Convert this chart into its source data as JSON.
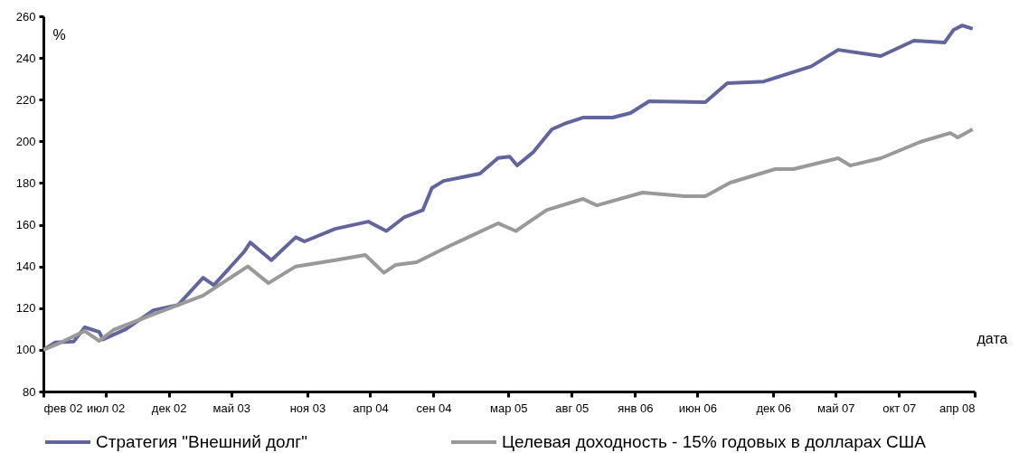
{
  "chart_data": {
    "type": "line",
    "xlabel": "дата",
    "ylabel": "%",
    "xlim": [
      "2002-02-01",
      "2008-04-01"
    ],
    "ylim": [
      80,
      260
    ],
    "yticks": [
      80,
      100,
      120,
      140,
      160,
      180,
      200,
      220,
      240,
      260
    ],
    "xticks": [
      {
        "value": "2002-02-01",
        "label": "фев 02"
      },
      {
        "value": "2002-07-01",
        "label": "июл 02"
      },
      {
        "value": "2002-12-01",
        "label": "дек 02"
      },
      {
        "value": "2003-05-01",
        "label": "май 03"
      },
      {
        "value": "2003-11-01",
        "label": "ноя 03"
      },
      {
        "value": "2004-04-01",
        "label": "апр 04"
      },
      {
        "value": "2004-09-01",
        "label": "сен 04"
      },
      {
        "value": "2005-03-01",
        "label": "мар 05"
      },
      {
        "value": "2005-08-01",
        "label": "авг 05"
      },
      {
        "value": "2006-01-01",
        "label": "янв 06"
      },
      {
        "value": "2006-06-01",
        "label": "июн 06"
      },
      {
        "value": "2006-12-01",
        "label": "дек 06"
      },
      {
        "value": "2007-05-01",
        "label": "май 07"
      },
      {
        "value": "2007-10-01",
        "label": "окт 07"
      },
      {
        "value": "2008-04-01",
        "label": "апр 08"
      }
    ],
    "grid": false,
    "legend": "bottom",
    "marker": "none",
    "line_style": "solid",
    "series": [
      {
        "name": "Стратегия \"Внешний долг\"",
        "color": "#62659c",
        "x": [
          "2002-02-01",
          "2002-03-01",
          "2002-04-15",
          "2002-05-12",
          "2002-06-16",
          "2002-06-25",
          "2002-08-20",
          "2002-10-25",
          "2002-12-24",
          "2003-02-22",
          "2003-03-20",
          "2003-06-01",
          "2003-06-16",
          "2003-08-06",
          "2003-10-04",
          "2003-10-25",
          "2004-01-07",
          "2004-03-27",
          "2004-05-10",
          "2004-06-23",
          "2004-08-06",
          "2004-08-28",
          "2004-09-25",
          "2004-12-22",
          "2005-02-04",
          "2005-03-04",
          "2005-03-22",
          "2005-05-01",
          "2005-06-14",
          "2005-07-14",
          "2005-08-28",
          "2005-11-08",
          "2005-12-21",
          "2006-02-04",
          "2006-06-20",
          "2006-08-12",
          "2006-11-08",
          "2007-03-03",
          "2007-05-07",
          "2007-08-18",
          "2007-11-06",
          "2008-01-19",
          "2008-02-10",
          "2008-03-02",
          "2008-03-27"
        ],
        "values": [
          100,
          103.5,
          104,
          110.8,
          108.6,
          105,
          110,
          119,
          121.6,
          134.6,
          131,
          147,
          151.5,
          143,
          154,
          152,
          158,
          161.5,
          157,
          163.7,
          167,
          177.6,
          181,
          184.5,
          192,
          192.7,
          188.4,
          195,
          205.8,
          208.4,
          211.4,
          211.4,
          213.6,
          219.2,
          218.8,
          227.9,
          228.7,
          236,
          243.9,
          240.9,
          248.3,
          247.4,
          253.5,
          255.6,
          254
        ]
      },
      {
        "name": "Целевая доходность - 15% годовых в долларах США",
        "color": "#999999",
        "x": [
          "2002-02-01",
          "2002-03-15",
          "2002-05-12",
          "2002-06-16",
          "2002-07-20",
          "2002-10-25",
          "2003-02-22",
          "2003-06-10",
          "2003-07-30",
          "2003-10-04",
          "2004-01-07",
          "2004-03-20",
          "2004-05-04",
          "2004-06-01",
          "2004-07-22",
          "2004-10-05",
          "2005-02-04",
          "2005-03-19",
          "2005-06-01",
          "2005-08-28",
          "2005-10-01",
          "2006-01-19",
          "2006-05-01",
          "2006-06-20",
          "2006-08-19",
          "2006-12-06",
          "2007-01-19",
          "2007-05-07",
          "2007-06-05",
          "2007-08-18",
          "2007-11-21",
          "2008-02-02",
          "2008-02-20",
          "2008-03-27"
        ],
        "values": [
          100,
          103.5,
          109,
          104.3,
          109.5,
          117,
          126,
          140,
          132,
          140,
          143,
          145.5,
          137,
          140.7,
          142,
          149.4,
          160.7,
          157,
          167,
          172.4,
          169.3,
          175.4,
          173.7,
          173.7,
          180.2,
          186.7,
          186.7,
          191.9,
          188.4,
          191.9,
          199.7,
          204,
          201.9,
          205.8
        ]
      }
    ]
  }
}
